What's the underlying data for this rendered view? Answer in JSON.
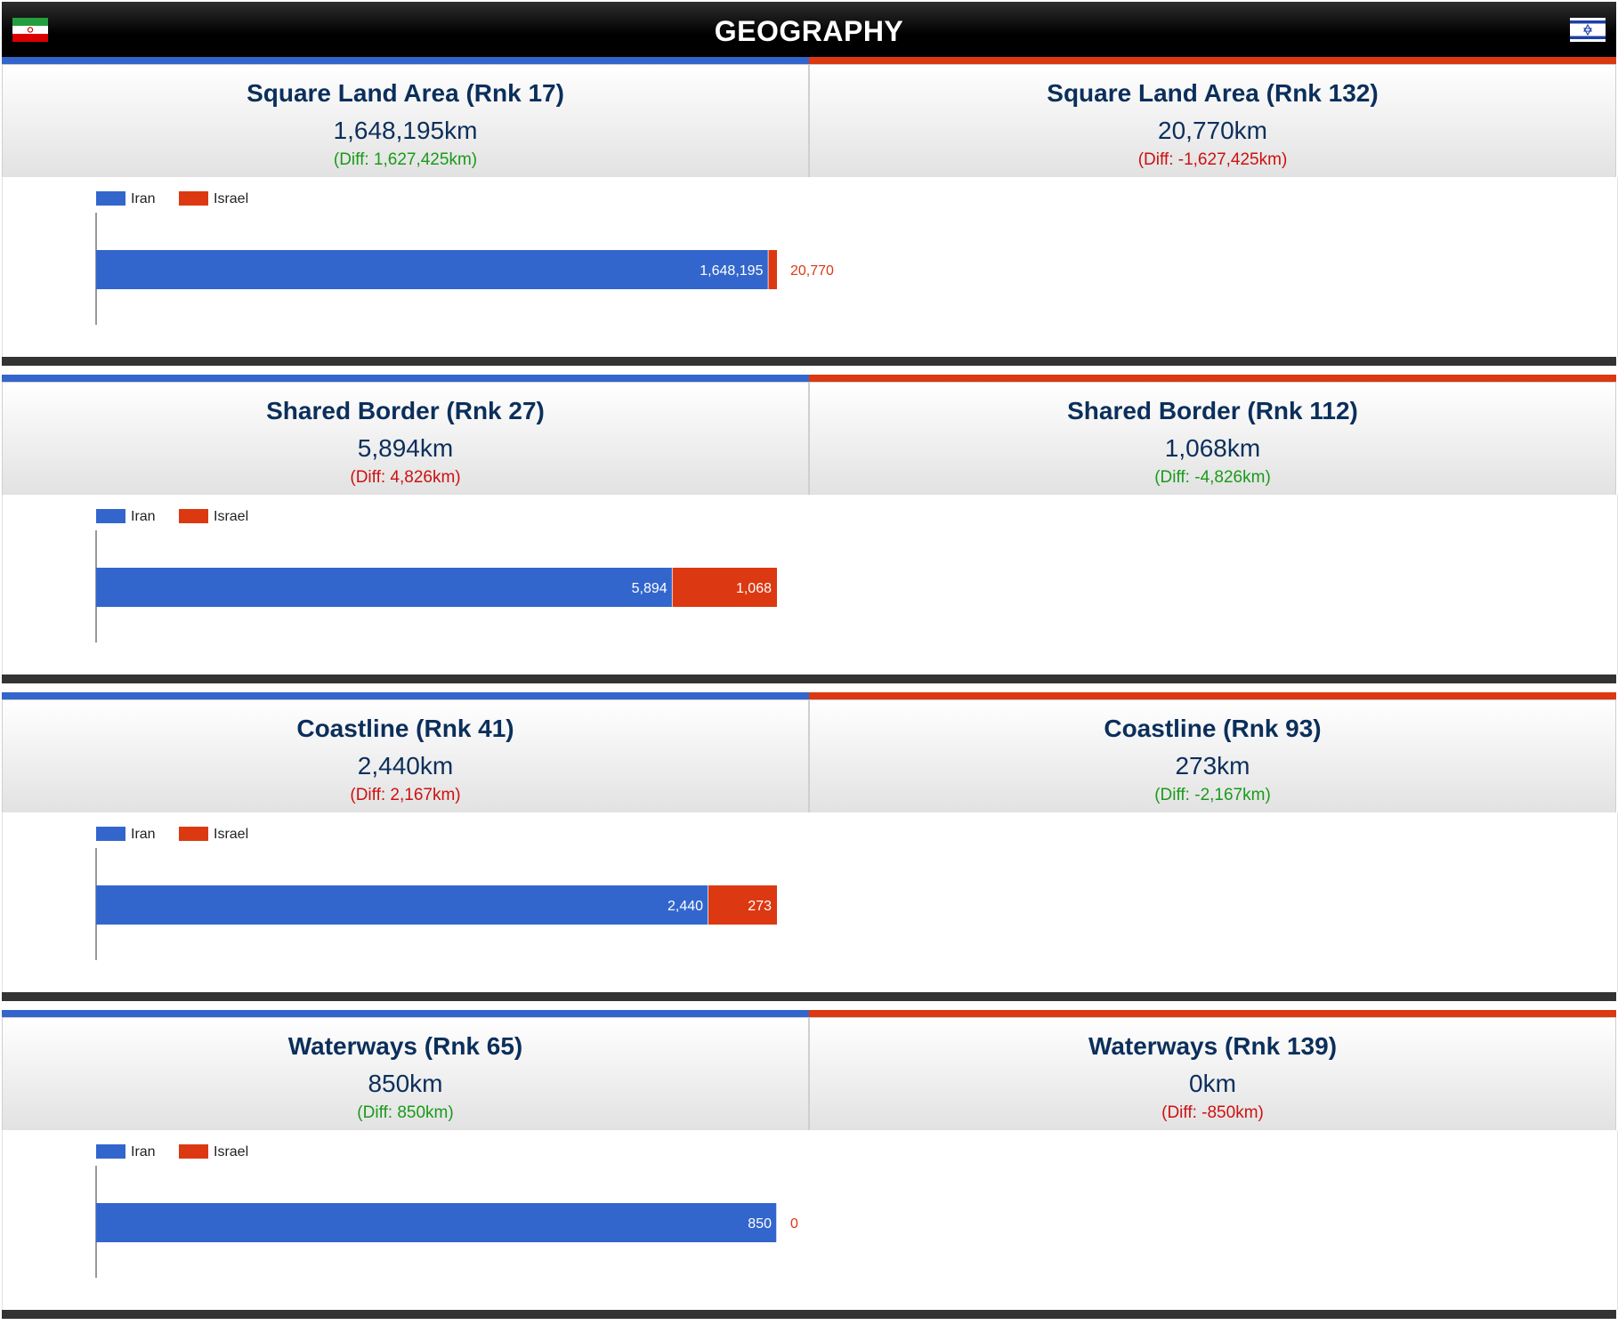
{
  "header": {
    "title": "GEOGRAPHY",
    "left_flag": "iran-flag-icon",
    "right_flag": "israel-flag-icon"
  },
  "colors": {
    "iran": "#3366cc",
    "israel": "#dc3912"
  },
  "sections": [
    {
      "left": {
        "title": "Square Land Area (Rnk 17)",
        "value": "1,648,195km",
        "diff": "(Diff: 1,627,425km)",
        "diff_color": "green"
      },
      "right": {
        "title": "Square Land Area (Rnk 132)",
        "value": "20,770km",
        "diff": "(Diff: -1,627,425km)",
        "diff_color": "red"
      }
    },
    {
      "left": {
        "title": "Shared Border (Rnk 27)",
        "value": "5,894km",
        "diff": "(Diff: 4,826km)",
        "diff_color": "red"
      },
      "right": {
        "title": "Shared Border (Rnk 112)",
        "value": "1,068km",
        "diff": "(Diff: -4,826km)",
        "diff_color": "green"
      }
    },
    {
      "left": {
        "title": "Coastline (Rnk 41)",
        "value": "2,440km",
        "diff": "(Diff: 2,167km)",
        "diff_color": "red"
      },
      "right": {
        "title": "Coastline (Rnk 93)",
        "value": "273km",
        "diff": "(Diff: -2,167km)",
        "diff_color": "green"
      }
    },
    {
      "left": {
        "title": "Waterways (Rnk 65)",
        "value": "850km",
        "diff": "(Diff: 850km)",
        "diff_color": "green"
      },
      "right": {
        "title": "Waterways (Rnk 139)",
        "value": "0km",
        "diff": "(Diff: -850km)",
        "diff_color": "red"
      }
    }
  ],
  "chart_data": [
    {
      "type": "bar",
      "orientation": "horizontal",
      "stacked": true,
      "grid": false,
      "legend_position": "top-left",
      "series": [
        {
          "name": "Iran",
          "values": [
            1648195
          ],
          "labels": [
            "1,648,195"
          ]
        },
        {
          "name": "Israel",
          "values": [
            20770
          ],
          "labels": [
            "20,770"
          ]
        }
      ]
    },
    {
      "type": "bar",
      "orientation": "horizontal",
      "stacked": true,
      "grid": false,
      "legend_position": "top-left",
      "series": [
        {
          "name": "Iran",
          "values": [
            5894
          ],
          "labels": [
            "5,894"
          ]
        },
        {
          "name": "Israel",
          "values": [
            1068
          ],
          "labels": [
            "1,068"
          ]
        }
      ]
    },
    {
      "type": "bar",
      "orientation": "horizontal",
      "stacked": true,
      "grid": false,
      "legend_position": "top-left",
      "series": [
        {
          "name": "Iran",
          "values": [
            2440
          ],
          "labels": [
            "2,440"
          ]
        },
        {
          "name": "Israel",
          "values": [
            273
          ],
          "labels": [
            "273"
          ]
        }
      ]
    },
    {
      "type": "bar",
      "orientation": "horizontal",
      "stacked": true,
      "grid": false,
      "legend_position": "top-left",
      "series": [
        {
          "name": "Iran",
          "values": [
            850
          ],
          "labels": [
            "850"
          ]
        },
        {
          "name": "Israel",
          "values": [
            0
          ],
          "labels": [
            "0"
          ]
        }
      ]
    }
  ]
}
